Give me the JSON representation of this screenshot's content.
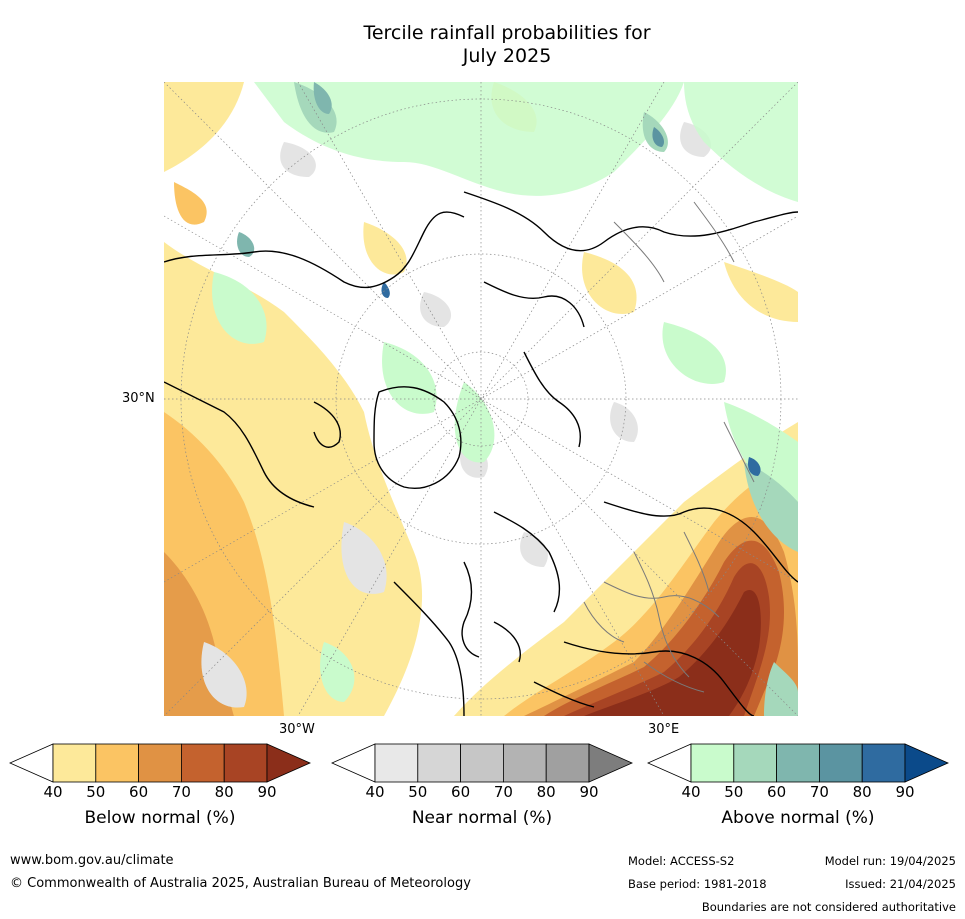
{
  "title_line1": "Tercile rainfall probabilities for",
  "title_line2": "July 2025",
  "map": {
    "lat_label": "30°N",
    "lon_label_left": "30°W",
    "lon_label_right": "30°E"
  },
  "colorbars": [
    {
      "label": "Below normal (%)",
      "ticks": [
        "40",
        "50",
        "60",
        "70",
        "80",
        "90"
      ],
      "colors": [
        "#ffffff",
        "#fde99a",
        "#fbc463",
        "#e09244",
        "#c4622e",
        "#a84424",
        "#8b2e1a"
      ]
    },
    {
      "label": "Near normal (%)",
      "ticks": [
        "40",
        "50",
        "60",
        "70",
        "80",
        "90"
      ],
      "colors": [
        "#ffffff",
        "#e8e8e8",
        "#d6d6d6",
        "#c6c6c6",
        "#b3b3b3",
        "#a0a0a0",
        "#7d7d7d"
      ]
    },
    {
      "label": "Above normal (%)",
      "ticks": [
        "40",
        "50",
        "60",
        "70",
        "80",
        "90"
      ],
      "colors": [
        "#ffffff",
        "#c9fbcc",
        "#a5d8bb",
        "#7fb6ae",
        "#5b94a1",
        "#2f6ba0",
        "#0b4a8a"
      ]
    }
  ],
  "footer": {
    "url": "www.bom.gov.au/climate",
    "copyright": "© Commonwealth of Australia 2025, Australian Bureau of Meteorology",
    "model": "Model: ACCESS-S2",
    "model_run": "Model run: 19/04/2025",
    "base_period": "Base period: 1981-2018",
    "issued": "Issued: 21/04/2025",
    "disclaimer": "Boundaries are not considered authoritative"
  }
}
